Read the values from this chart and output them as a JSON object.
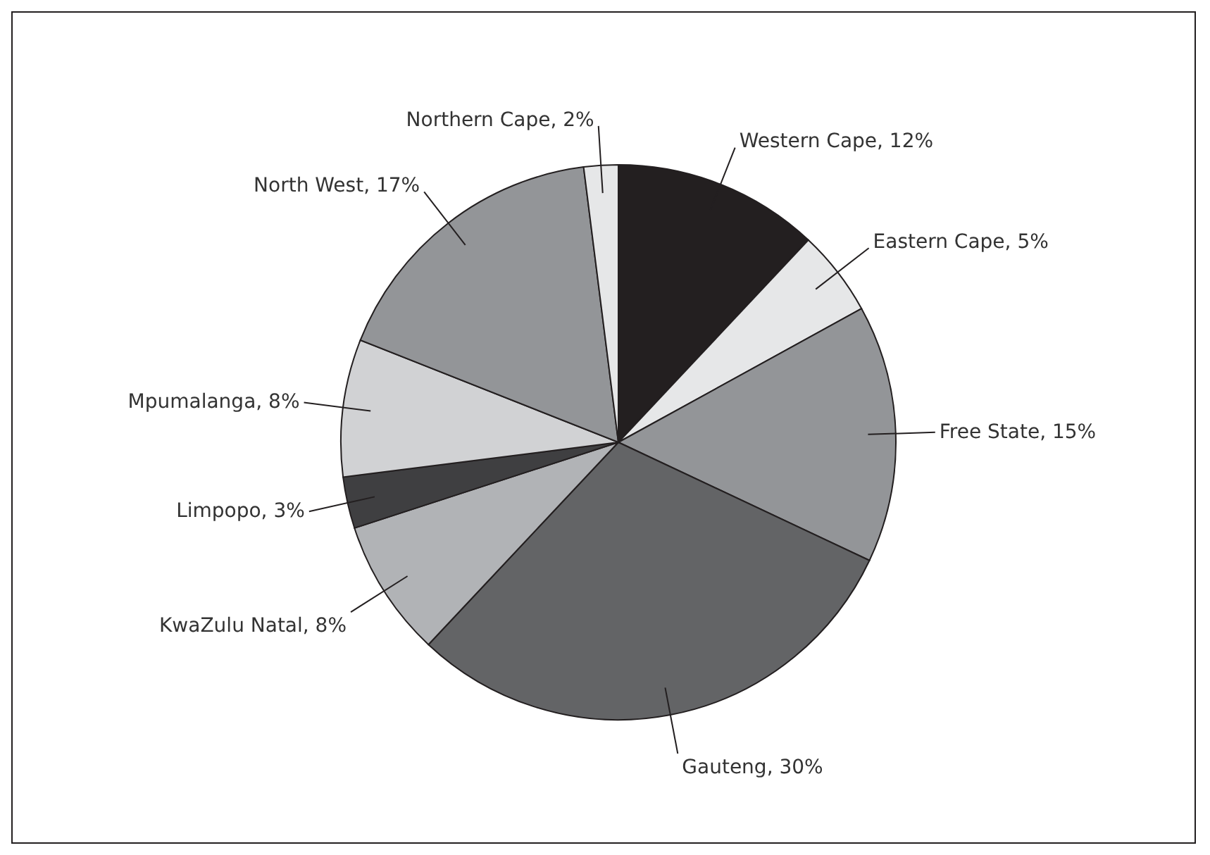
{
  "chart_data": {
    "type": "pie",
    "categories": [
      "Western Cape",
      "Eastern Cape",
      "Free State",
      "Gauteng",
      "KwaZulu Natal",
      "Limpopo",
      "Mpumalanga",
      "North West",
      "Northern Cape"
    ],
    "values": [
      12,
      5,
      15,
      30,
      8,
      3,
      8,
      17,
      2
    ],
    "value_labels": [
      "12%",
      "5%",
      "15%",
      "30%",
      "8%",
      "3%",
      "8%",
      "17%",
      "2%"
    ],
    "colors": [
      "#231f20",
      "#e6e7e8",
      "#939598",
      "#636466",
      "#b1b3b6",
      "#3f3f41",
      "#d1d2d4",
      "#939598",
      "#e6e7e8"
    ],
    "legend": false
  }
}
